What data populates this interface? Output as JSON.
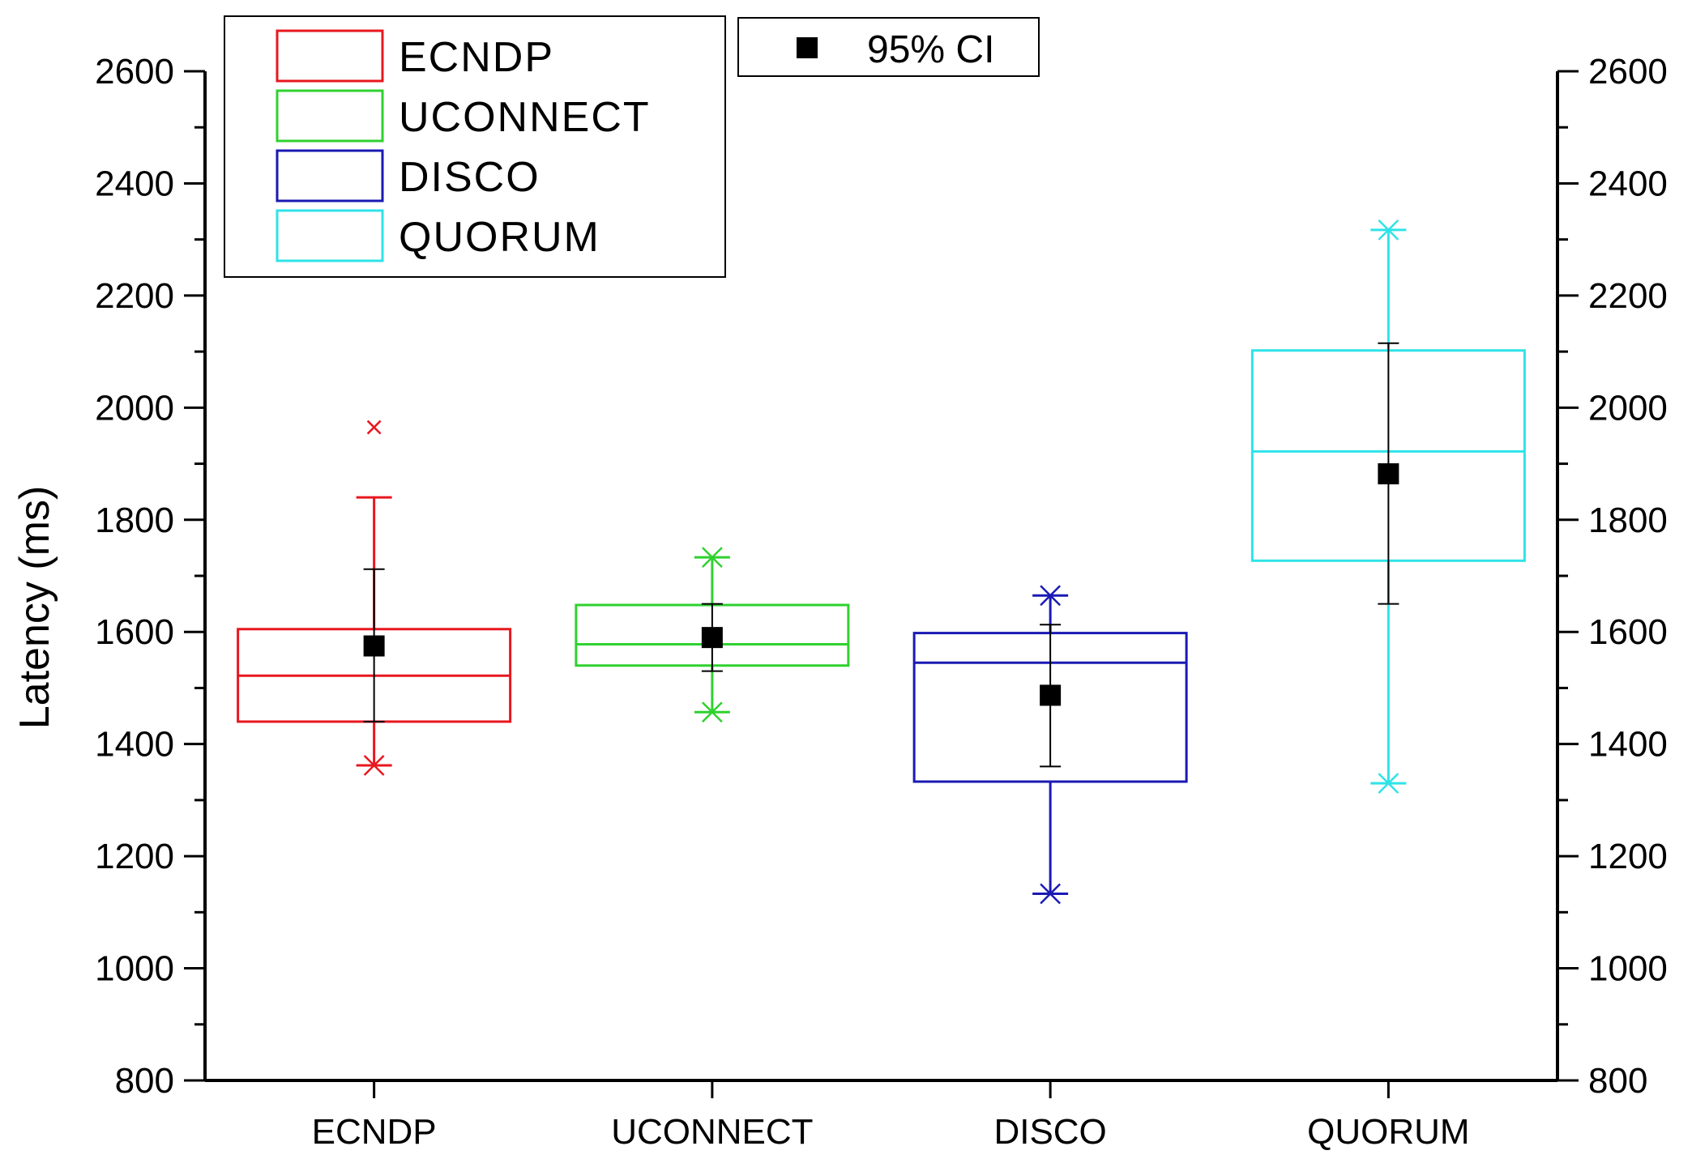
{
  "chart_data": {
    "type": "box",
    "title": "",
    "xlabel": "",
    "ylabel": "Latency (ms)",
    "ylim": [
      800,
      2600
    ],
    "y_ticks": [
      "800",
      "1000",
      "1200",
      "1400",
      "1600",
      "1800",
      "2000",
      "2200",
      "2400",
      "2600"
    ],
    "categories": [
      "ECNDP",
      "UCONNECT",
      "DISCO",
      "QUORUM"
    ],
    "series": [
      {
        "name": "ECNDP",
        "color": "#e8171f",
        "q1": 1440,
        "median": 1522,
        "q3": 1605,
        "whisker_low": 1362,
        "whisker_high": 1840,
        "min": 1362,
        "max": 1965,
        "ci_low": 1440,
        "ci_high": 1712,
        "mean": 1575
      },
      {
        "name": "UCONNECT",
        "color": "#2fd12f",
        "q1": 1540,
        "median": 1578,
        "q3": 1648,
        "whisker_low": 1457,
        "whisker_high": 1733,
        "min": 1457,
        "max": 1733,
        "ci_low": 1530,
        "ci_high": 1650,
        "mean": 1590
      },
      {
        "name": "DISCO",
        "color": "#1a1ab4",
        "q1": 1333,
        "median": 1545,
        "q3": 1598,
        "whisker_low": 1133,
        "whisker_high": 1665,
        "min": 1133,
        "max": 1665,
        "ci_low": 1360,
        "ci_high": 1613,
        "mean": 1487
      },
      {
        "name": "QUORUM",
        "color": "#2ee3e8",
        "q1": 1727,
        "median": 1922,
        "q3": 2102,
        "whisker_low": 1330,
        "whisker_high": 2317,
        "min": 1330,
        "max": 2317,
        "ci_low": 1650,
        "ci_high": 2115,
        "mean": 1882
      }
    ],
    "legend": {
      "entries": [
        "ECNDP",
        "UCONNECT",
        "DISCO",
        "QUORUM"
      ],
      "placement": "top-left",
      "mean_marker_label": "95% CI"
    }
  }
}
